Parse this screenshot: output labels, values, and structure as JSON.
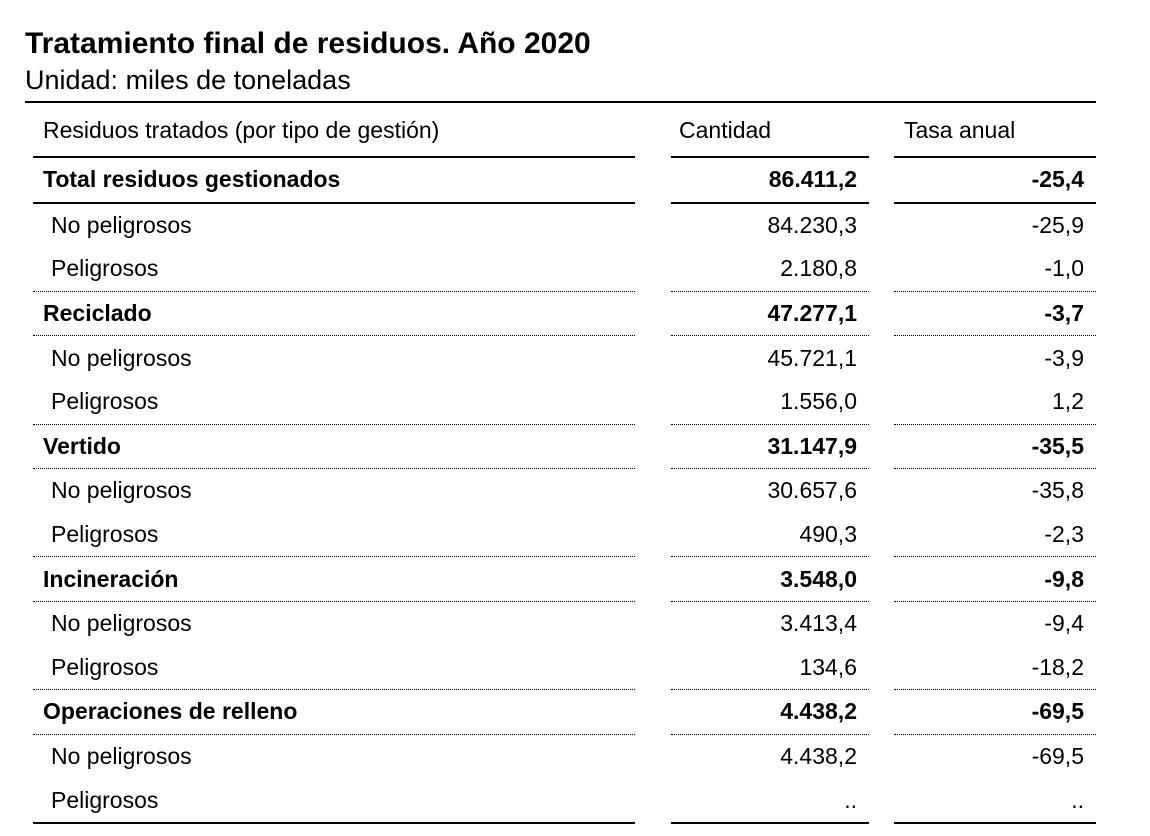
{
  "title": "Tratamiento final de residuos. Año 2020",
  "subtitle": "Unidad: miles de toneladas",
  "table": {
    "headers": [
      "Residuos tratados (por tipo de gestión)",
      "Cantidad",
      "Tasa anual"
    ],
    "rows": [
      {
        "label": "Total residuos gestionados",
        "cantidad": "86.411,2",
        "tasa": "-25,4",
        "group": true
      },
      {
        "label": "No peligrosos",
        "cantidad": "84.230,3",
        "tasa": "-25,9",
        "group": false
      },
      {
        "label": "Peligrosos",
        "cantidad": "2.180,8",
        "tasa": "-1,0",
        "group": false
      },
      {
        "label": "Reciclado",
        "cantidad": "47.277,1",
        "tasa": "-3,7",
        "group": true
      },
      {
        "label": "No peligrosos",
        "cantidad": "45.721,1",
        "tasa": "-3,9",
        "group": false
      },
      {
        "label": "Peligrosos",
        "cantidad": "1.556,0",
        "tasa": "1,2",
        "group": false
      },
      {
        "label": "Vertido",
        "cantidad": "31.147,9",
        "tasa": "-35,5",
        "group": true
      },
      {
        "label": "No peligrosos",
        "cantidad": "30.657,6",
        "tasa": "-35,8",
        "group": false
      },
      {
        "label": "Peligrosos",
        "cantidad": "490,3",
        "tasa": "-2,3",
        "group": false
      },
      {
        "label": "Incineración",
        "cantidad": "3.548,0",
        "tasa": "-9,8",
        "group": true
      },
      {
        "label": "No peligrosos",
        "cantidad": "3.413,4",
        "tasa": "-9,4",
        "group": false
      },
      {
        "label": "Peligrosos",
        "cantidad": "134,6",
        "tasa": "-18,2",
        "group": false
      },
      {
        "label": "Operaciones de relleno",
        "cantidad": "4.438,2",
        "tasa": "-69,5",
        "group": true
      },
      {
        "label": "No peligrosos",
        "cantidad": "4.438,2",
        "tasa": "-69,5",
        "group": false
      },
      {
        "label": "Peligrosos",
        "cantidad": "..",
        "tasa": "..",
        "group": false
      }
    ]
  }
}
